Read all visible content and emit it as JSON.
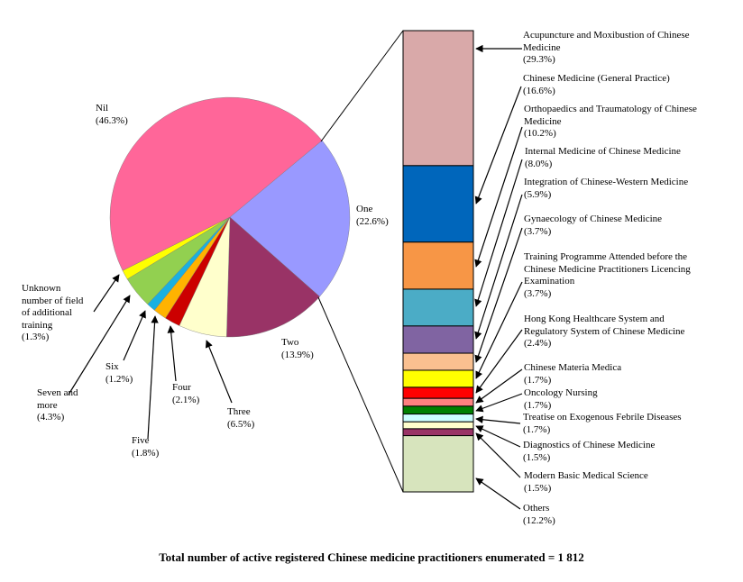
{
  "chart_data": [
    {
      "type": "pie",
      "title": "Number of field of additional training",
      "categories": [
        "Nil",
        "One",
        "Two",
        "Three",
        "Four",
        "Five",
        "Six",
        "Seven and more",
        "Unknown number of field of additional training"
      ],
      "values": [
        46.3,
        22.6,
        13.9,
        6.5,
        2.1,
        1.8,
        1.2,
        4.3,
        1.3
      ],
      "unit": "%",
      "colors": [
        "#FF6699",
        "#9999FF",
        "#993366",
        "#FFFFCC",
        "#CC0000",
        "#FFB300",
        "#1AB0E0",
        "#92D050",
        "#FFFF00"
      ],
      "labels": [
        "Nil\n(46.3%)",
        "One\n(22.6%)",
        "Two\n(13.9%)",
        "Three\n(6.5%)",
        "Four\n(2.1%)",
        "Five\n(1.8%)",
        "Six\n(1.2%)",
        "Seven and\nmore\n(4.3%)",
        "Unknown\nnumber of field\nof additional\ntraining\n(1.3%)"
      ]
    },
    {
      "type": "bar",
      "stacked": true,
      "title": "Field of additional training (breakdown of 'One')",
      "categories": [
        "Acupuncture and Moxibustion of Chinese Medicine",
        "Chinese Medicine (General Practice)",
        "Orthopaedics and Traumatology of Chinese Medicine",
        "Internal Medicine of Chinese Medicine",
        "Integration of Chinese-Western Medicine",
        "Gynaecology of Chinese Medicine",
        "Training Programme Attended before the Chinese Medicine Practitioners Licencing Examination",
        "Hong Kong Healthcare System and Regulatory System of Chinese Medicine",
        "Chinese Materia Medica",
        "Oncology Nursing",
        "Treatise on Exogenous Febrile Diseases",
        "Diagnostics of Chinese Medicine",
        "Modern Basic Medical Science",
        "Others"
      ],
      "values": [
        29.3,
        16.6,
        10.2,
        8.0,
        5.9,
        3.7,
        3.7,
        2.4,
        1.7,
        1.7,
        1.7,
        1.5,
        1.5,
        12.2
      ],
      "unit": "%",
      "colors": [
        "#D9A9A9",
        "#0066BB",
        "#F79646",
        "#4BACC6",
        "#8064A2",
        "#FAC090",
        "#FFFF00",
        "#FF0000",
        "#FF8080",
        "#008000",
        "#CCFFFF",
        "#FFFFCC",
        "#993366",
        "#D7E4BD"
      ]
    }
  ],
  "pie_labels": {
    "nil": {
      "name": "Nil",
      "pct": "(46.3%)"
    },
    "one": {
      "name": "One",
      "pct": "(22.6%)"
    },
    "two": {
      "name": "Two",
      "pct": "(13.9%)"
    },
    "three": {
      "name": "Three",
      "pct": "(6.5%)"
    },
    "four": {
      "name": "Four",
      "pct": "(2.1%)"
    },
    "five": {
      "name": "Five",
      "pct": "(1.8%)"
    },
    "six": {
      "name": "Six",
      "pct": "(1.2%)"
    },
    "seven": {
      "name": "Seven and\nmore",
      "pct": "(4.3%)"
    },
    "unknown": {
      "name": "Unknown\nnumber of field\nof additional\ntraining",
      "pct": "(1.3%)"
    }
  },
  "bar_labels": [
    {
      "name": "Acupuncture and Moxibustion of Chinese\nMedicine",
      "pct": "(29.3%)"
    },
    {
      "name": "Chinese Medicine (General Practice)",
      "pct": "(16.6%)"
    },
    {
      "name": "Orthopaedics and Traumatology of Chinese\nMedicine",
      "pct": "(10.2%)"
    },
    {
      "name": "Internal Medicine of Chinese Medicine",
      "pct": "(8.0%)"
    },
    {
      "name": "Integration of Chinese-Western Medicine",
      "pct": "(5.9%)"
    },
    {
      "name": "Gynaecology of Chinese Medicine",
      "pct": "(3.7%)"
    },
    {
      "name": "Training Programme Attended before the\nChinese Medicine Practitioners Licencing\nExamination",
      "pct": "(3.7%)"
    },
    {
      "name": "Hong Kong Healthcare System and\nRegulatory System of Chinese Medicine",
      "pct": "(2.4%)"
    },
    {
      "name": "Chinese Materia Medica",
      "pct": "(1.7%)"
    },
    {
      "name": "Oncology Nursing",
      "pct": "(1.7%)"
    },
    {
      "name": "Treatise on Exogenous Febrile Diseases",
      "pct": "(1.7%)"
    },
    {
      "name": "Diagnostics of Chinese Medicine",
      "pct": "(1.5%)"
    },
    {
      "name": "Modern Basic Medical Science",
      "pct": "(1.5%)"
    },
    {
      "name": "Others",
      "pct": "(12.2%)"
    }
  ],
  "footer": {
    "title": "Total number of active registered Chinese medicine practitioners enumerated = 1 812"
  }
}
